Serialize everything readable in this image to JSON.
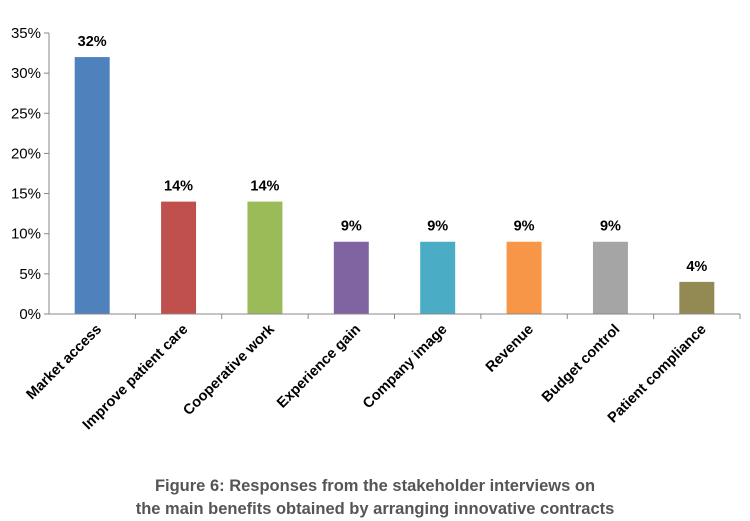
{
  "caption": {
    "line1": "Figure 6: Responses from the stakeholder interviews on",
    "line2": "the main benefits obtained by arranging innovative contracts"
  },
  "chart_data": {
    "type": "bar",
    "title": "",
    "xlabel": "",
    "ylabel": "",
    "ylim": [
      0,
      35
    ],
    "yticks": [
      0,
      5,
      10,
      15,
      20,
      25,
      30,
      35
    ],
    "ytick_labels": [
      "0%",
      "5%",
      "10%",
      "15%",
      "20%",
      "25%",
      "30%",
      "35%"
    ],
    "grid": false,
    "legend": "none",
    "categories": [
      "Market access",
      "Improve patient care",
      "Cooperative work",
      "Experience gain",
      "Company image",
      "Revenue",
      "Budget control",
      "Patient compliance"
    ],
    "values": [
      32,
      14,
      14,
      9,
      9,
      9,
      9,
      4
    ],
    "data_labels": [
      "32%",
      "14%",
      "14%",
      "9%",
      "9%",
      "9%",
      "9%",
      "4%"
    ],
    "colors": [
      "#4f81bd",
      "#c0504d",
      "#9bbb59",
      "#8064a2",
      "#4bacc6",
      "#f79646",
      "#a5a5a5",
      "#938953"
    ]
  }
}
